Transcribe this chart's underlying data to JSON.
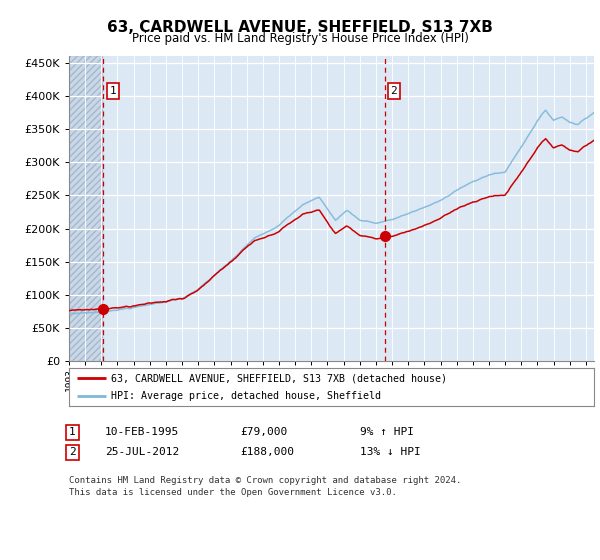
{
  "title": "63, CARDWELL AVENUE, SHEFFIELD, S13 7XB",
  "subtitle": "Price paid vs. HM Land Registry's House Price Index (HPI)",
  "legend_line1": "63, CARDWELL AVENUE, SHEFFIELD, S13 7XB (detached house)",
  "legend_line2": "HPI: Average price, detached house, Sheffield",
  "annotation1_date": "10-FEB-1995",
  "annotation1_price": "£79,000",
  "annotation1_hpi": "9% ↑ HPI",
  "annotation2_date": "25-JUL-2012",
  "annotation2_price": "£188,000",
  "annotation2_hpi": "13% ↓ HPI",
  "footer": "Contains HM Land Registry data © Crown copyright and database right 2024.\nThis data is licensed under the Open Government Licence v3.0.",
  "sale1_x": 1995.11,
  "sale1_y": 79000,
  "sale2_x": 2012.56,
  "sale2_y": 188000,
  "hpi_color": "#7fb8d8",
  "price_color": "#cc0000",
  "vline_color": "#cc0000",
  "dot_color": "#cc0000",
  "bg_color": "#dce9f5",
  "ylim": [
    0,
    460000
  ],
  "xlim_start": 1993.0,
  "xlim_end": 2025.5,
  "yticks": [
    0,
    50000,
    100000,
    150000,
    200000,
    250000,
    300000,
    350000,
    400000,
    450000
  ]
}
